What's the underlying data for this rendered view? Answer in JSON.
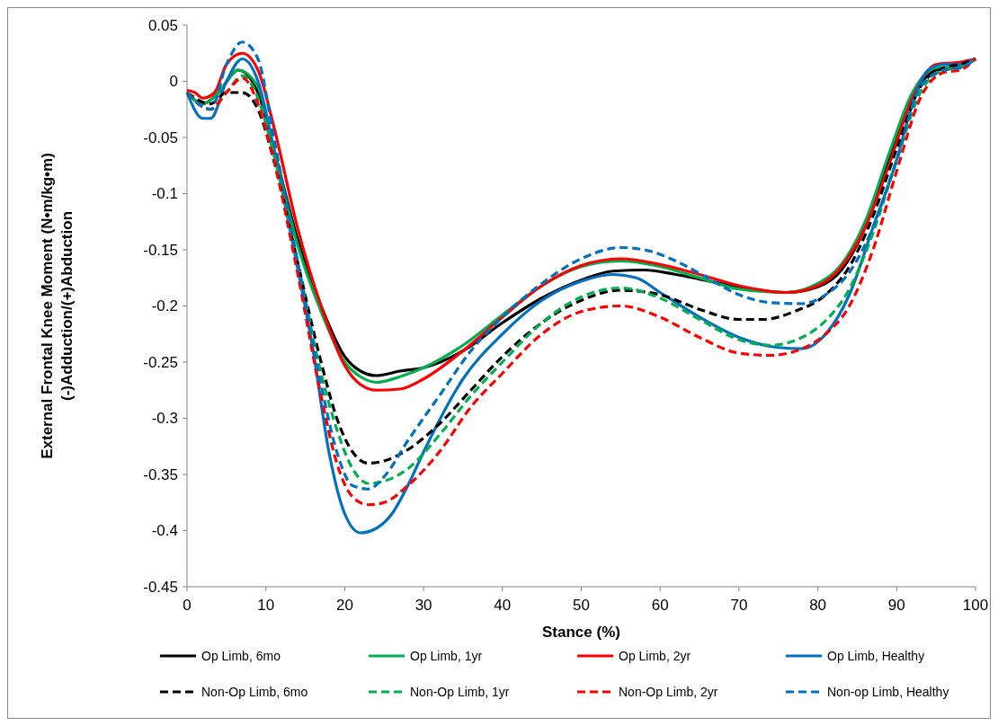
{
  "chart_data": {
    "type": "line",
    "xlabel": "Stance (%)",
    "ylabel": "External Frontal Knee Moment (N•m/kg•m)\n(-)Adduction/(+)Abduction",
    "xlim": [
      0,
      100
    ],
    "xticks": [
      0,
      10,
      20,
      30,
      40,
      50,
      60,
      70,
      80,
      90,
      100
    ],
    "ylim": [
      -0.45,
      0.05
    ],
    "yticks": [
      -0.45,
      -0.4,
      -0.35,
      -0.3,
      -0.25,
      -0.2,
      -0.15,
      -0.1,
      -0.05,
      0,
      0.05
    ],
    "grid": false,
    "legend": "bottom",
    "series": [
      {
        "name": "Op Limb, 6mo",
        "color": "#000000",
        "line_style": "solid",
        "x": [
          0,
          2,
          4,
          6.5,
          9,
          11,
          14,
          17,
          20,
          22,
          24,
          27,
          30,
          35,
          40,
          45,
          50,
          54,
          58,
          62,
          70,
          76,
          80,
          83,
          86,
          89,
          92,
          95,
          98,
          100
        ],
        "values": [
          -0.01,
          -0.02,
          -0.01,
          0.01,
          -0.01,
          -0.06,
          -0.14,
          -0.2,
          -0.245,
          -0.258,
          -0.262,
          -0.258,
          -0.255,
          -0.24,
          -0.215,
          -0.193,
          -0.177,
          -0.169,
          -0.168,
          -0.172,
          -0.183,
          -0.188,
          -0.183,
          -0.168,
          -0.13,
          -0.07,
          -0.015,
          0.01,
          0.013,
          0.02
        ]
      },
      {
        "name": "Op Limb, 1yr",
        "color": "#00b050",
        "line_style": "solid",
        "x": [
          0,
          2,
          4,
          6.5,
          9,
          11,
          14,
          17,
          20,
          22,
          24,
          27,
          30,
          35,
          40,
          45,
          50,
          55,
          60,
          65,
          70,
          76,
          80,
          83,
          86,
          89,
          92,
          95,
          98,
          100
        ],
        "values": [
          -0.01,
          -0.02,
          -0.01,
          0.01,
          -0.005,
          -0.06,
          -0.145,
          -0.205,
          -0.25,
          -0.263,
          -0.268,
          -0.263,
          -0.255,
          -0.235,
          -0.208,
          -0.182,
          -0.165,
          -0.16,
          -0.165,
          -0.175,
          -0.185,
          -0.188,
          -0.18,
          -0.163,
          -0.125,
          -0.065,
          -0.01,
          0.012,
          0.013,
          0.02
        ]
      },
      {
        "name": "Op Limb, 2yr",
        "color": "#ff0000",
        "line_style": "solid",
        "x": [
          0,
          1,
          2,
          3.5,
          5,
          7,
          9,
          11,
          14,
          17,
          20,
          22,
          24,
          27,
          30,
          35,
          40,
          45,
          50,
          55,
          60,
          65,
          70,
          76,
          80,
          83,
          86,
          89,
          92,
          95,
          98,
          100
        ],
        "values": [
          -0.008,
          -0.01,
          -0.015,
          -0.01,
          0.015,
          0.025,
          0.01,
          -0.04,
          -0.13,
          -0.2,
          -0.253,
          -0.27,
          -0.275,
          -0.274,
          -0.265,
          -0.24,
          -0.21,
          -0.182,
          -0.164,
          -0.158,
          -0.163,
          -0.172,
          -0.182,
          -0.188,
          -0.182,
          -0.165,
          -0.13,
          -0.075,
          -0.015,
          0.015,
          0.017,
          0.02
        ]
      },
      {
        "name": "Op Limb, Healthy",
        "color": "#0070c0",
        "line_style": "solid",
        "x": [
          0,
          2,
          3,
          5,
          7,
          9,
          11,
          13,
          16,
          18,
          20,
          22,
          24,
          26,
          28,
          30,
          35,
          40,
          45,
          50,
          54,
          57,
          60,
          65,
          70,
          75,
          78,
          81,
          84,
          87,
          90,
          92,
          94,
          96,
          98,
          100
        ],
        "values": [
          -0.01,
          -0.033,
          -0.033,
          0,
          0.02,
          0,
          -0.06,
          -0.13,
          -0.24,
          -0.33,
          -0.385,
          -0.402,
          -0.398,
          -0.385,
          -0.36,
          -0.33,
          -0.265,
          -0.225,
          -0.195,
          -0.178,
          -0.172,
          -0.175,
          -0.188,
          -0.21,
          -0.228,
          -0.237,
          -0.238,
          -0.225,
          -0.19,
          -0.13,
          -0.07,
          -0.02,
          0.01,
          0.015,
          0.015,
          0.02
        ]
      },
      {
        "name": "Non-Op Limb, 6mo",
        "color": "#000000",
        "line_style": "dashed",
        "x": [
          0,
          3,
          5,
          7,
          9,
          11,
          14,
          17,
          19,
          21,
          23,
          25,
          28,
          32,
          36,
          40,
          45,
          50,
          55,
          60,
          65,
          70,
          73,
          77,
          81,
          84,
          87,
          90,
          93,
          96,
          98,
          100
        ],
        "values": [
          -0.01,
          -0.02,
          -0.01,
          -0.01,
          -0.025,
          -0.07,
          -0.16,
          -0.25,
          -0.3,
          -0.33,
          -0.34,
          -0.338,
          -0.328,
          -0.305,
          -0.275,
          -0.245,
          -0.215,
          -0.195,
          -0.186,
          -0.19,
          -0.203,
          -0.212,
          -0.212,
          -0.205,
          -0.19,
          -0.165,
          -0.12,
          -0.06,
          -0.005,
          0.012,
          0.015,
          0.02
        ]
      },
      {
        "name": "Non-Op Limb, 1yr",
        "color": "#00b050",
        "line_style": "dashed",
        "x": [
          0,
          3,
          5,
          7,
          9,
          11,
          14,
          17,
          19,
          21,
          23,
          25,
          28,
          32,
          36,
          40,
          45,
          50,
          55,
          60,
          65,
          70,
          74,
          78,
          81,
          84,
          87,
          90,
          93,
          96,
          98,
          100
        ],
        "values": [
          -0.01,
          -0.025,
          -0.01,
          0.005,
          -0.015,
          -0.065,
          -0.16,
          -0.26,
          -0.31,
          -0.345,
          -0.358,
          -0.356,
          -0.345,
          -0.315,
          -0.28,
          -0.25,
          -0.215,
          -0.192,
          -0.184,
          -0.193,
          -0.212,
          -0.23,
          -0.235,
          -0.228,
          -0.213,
          -0.185,
          -0.135,
          -0.07,
          -0.01,
          0.01,
          0.012,
          0.02
        ]
      },
      {
        "name": "Non-Op Limb, 2yr",
        "color": "#ff0000",
        "line_style": "dashed",
        "x": [
          0,
          3,
          5,
          7,
          9,
          11,
          14,
          17,
          19,
          21,
          23,
          25,
          28,
          32,
          36,
          40,
          45,
          50,
          55,
          60,
          65,
          70,
          74,
          78,
          81,
          84,
          87,
          90,
          93,
          96,
          98,
          100
        ],
        "values": [
          -0.01,
          -0.025,
          -0.01,
          0.003,
          -0.02,
          -0.07,
          -0.17,
          -0.28,
          -0.34,
          -0.37,
          -0.377,
          -0.375,
          -0.36,
          -0.33,
          -0.29,
          -0.26,
          -0.225,
          -0.205,
          -0.2,
          -0.21,
          -0.228,
          -0.242,
          -0.244,
          -0.238,
          -0.225,
          -0.2,
          -0.15,
          -0.08,
          -0.015,
          0.008,
          0.01,
          0.02
        ]
      },
      {
        "name": "Non-op Limb, Healthy",
        "color": "#0070c0",
        "line_style": "dashed",
        "x": [
          0,
          3,
          5,
          7,
          9,
          11,
          14,
          17,
          19,
          21,
          23,
          25,
          28,
          32,
          36,
          40,
          45,
          50,
          55,
          58,
          62,
          66,
          70,
          74,
          78,
          81,
          84,
          87,
          90,
          93,
          96,
          98,
          100
        ],
        "values": [
          -0.01,
          -0.025,
          0.015,
          0.035,
          0.02,
          -0.05,
          -0.16,
          -0.27,
          -0.33,
          -0.36,
          -0.363,
          -0.352,
          -0.32,
          -0.28,
          -0.24,
          -0.21,
          -0.18,
          -0.158,
          -0.148,
          -0.15,
          -0.16,
          -0.175,
          -0.19,
          -0.197,
          -0.198,
          -0.19,
          -0.17,
          -0.13,
          -0.07,
          -0.005,
          0.01,
          0.012,
          0.02
        ]
      }
    ]
  }
}
